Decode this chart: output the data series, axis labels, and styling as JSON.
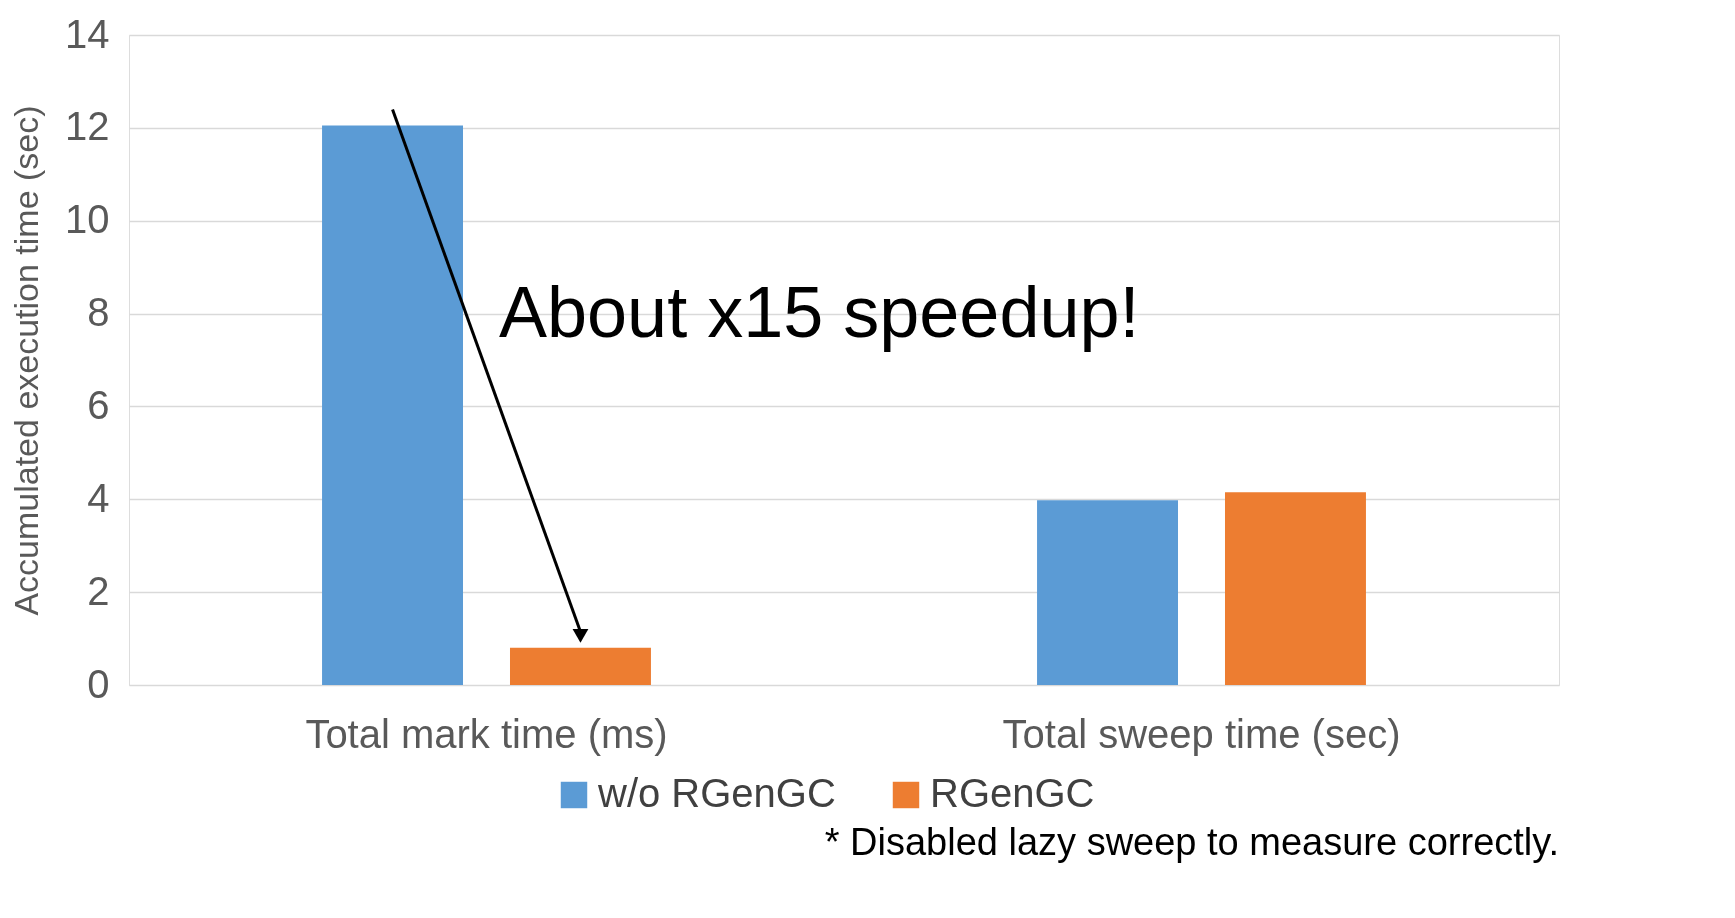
{
  "chart_data": {
    "type": "bar",
    "ylabel": "Accumulated execution time (sec)",
    "categories": [
      "Total mark time (ms)",
      "Total sweep time (sec)"
    ],
    "series": [
      {
        "name": "w/o RGenGC",
        "color": "#5b9bd5",
        "values": [
          12.05,
          3.98
        ]
      },
      {
        "name": "RGenGC",
        "color": "#ed7d31",
        "values": [
          0.8,
          4.15
        ]
      }
    ],
    "ylim": [
      0,
      14
    ],
    "yticks": [
      0,
      2,
      4,
      6,
      8,
      10,
      12,
      14
    ],
    "grid": "y",
    "legend": "bottom",
    "annotations": [
      "About x15 speedup!",
      "* Disabled lazy sweep to measure correctly."
    ]
  }
}
